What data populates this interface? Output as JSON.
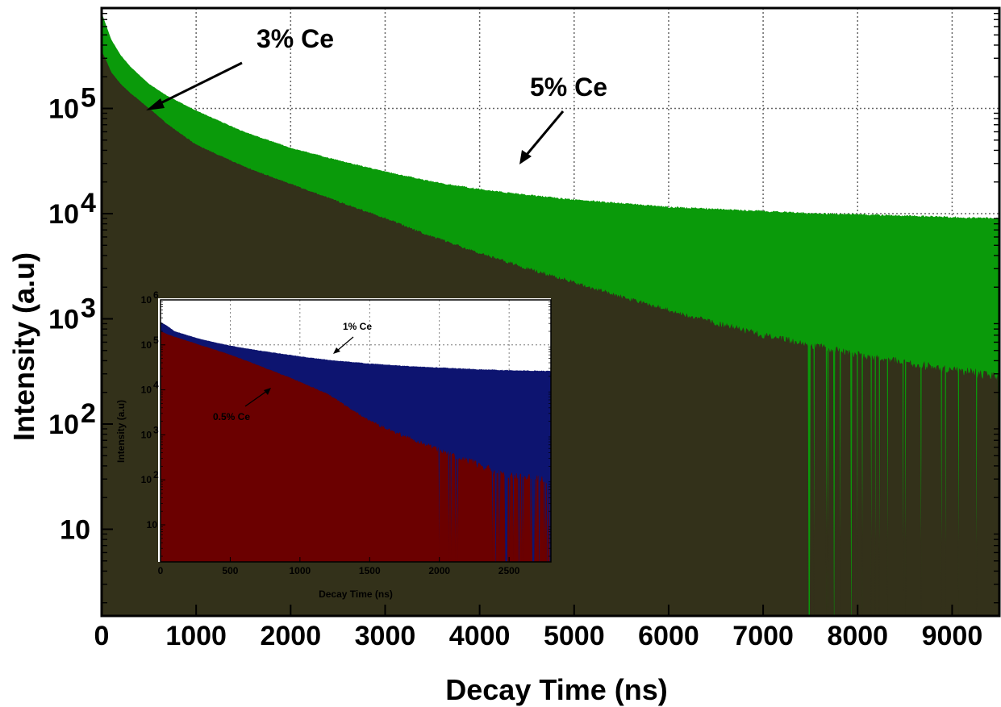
{
  "chart_data": [
    {
      "type": "area",
      "xlabel": "Decay Time (ns)",
      "ylabel": "Intensity (a.u)",
      "xlim": [
        0,
        9500
      ],
      "ylim": [
        1.5,
        900000
      ],
      "yscale": "log",
      "grid": true,
      "xticks": [
        "0",
        "1000",
        "2000",
        "3000",
        "4000",
        "5000",
        "6000",
        "7000",
        "8000",
        "9000"
      ],
      "yticks": [
        {
          "value": 10,
          "label": "10",
          "sup": ""
        },
        {
          "value": 100,
          "label": "10",
          "sup": "2"
        },
        {
          "value": 1000,
          "label": "10",
          "sup": "3"
        },
        {
          "value": 10000,
          "label": "10",
          "sup": "4"
        },
        {
          "value": 100000,
          "label": "10",
          "sup": "5"
        }
      ],
      "series": [
        {
          "name": "5% Ce",
          "color": "#0a9a0a",
          "x": [
            0,
            50,
            100,
            200,
            300,
            500,
            700,
            1000,
            1500,
            2000,
            2500,
            3000,
            3500,
            4000,
            4500,
            5000,
            5500,
            6000,
            6500,
            7000,
            7500,
            8000,
            8500,
            9000,
            9500
          ],
          "y": [
            800000,
            600000,
            450000,
            320000,
            250000,
            170000,
            130000,
            95000,
            60000,
            42000,
            32000,
            25000,
            20000,
            17000,
            15000,
            13500,
            12500,
            11500,
            11000,
            10500,
            10000,
            9800,
            9500,
            9200,
            9000
          ]
        },
        {
          "name": "3% Ce",
          "color": "#33311a",
          "x": [
            0,
            50,
            100,
            200,
            300,
            500,
            700,
            1000,
            1500,
            2000,
            2500,
            3000,
            3500,
            4000,
            4500,
            5000,
            5500,
            6000,
            6500,
            7000,
            7500,
            8000,
            8500,
            9000,
            9500
          ],
          "y": [
            350000,
            280000,
            220000,
            170000,
            140000,
            100000,
            70000,
            45000,
            28000,
            19000,
            13000,
            9000,
            6000,
            4200,
            3000,
            2200,
            1600,
            1200,
            900,
            700,
            560,
            450,
            380,
            320,
            280
          ]
        }
      ],
      "annotations": [
        "3% Ce",
        "5% Ce"
      ]
    },
    {
      "type": "area",
      "xlabel": "Decay Time (ns)",
      "ylabel": "Intensity (a.u)",
      "xlim": [
        0,
        2800
      ],
      "ylim": [
        1.5,
        1000000
      ],
      "yscale": "log",
      "grid": true,
      "xticks": [
        "0",
        "500",
        "1000",
        "1500",
        "2000",
        "2500"
      ],
      "yticks": [
        {
          "value": 10,
          "label": "10",
          "sup": ""
        },
        {
          "value": 100,
          "label": "10",
          "sup": "2"
        },
        {
          "value": 1000,
          "label": "10",
          "sup": "3"
        },
        {
          "value": 10000,
          "label": "10",
          "sup": "4"
        },
        {
          "value": 100000,
          "label": "10",
          "sup": "5"
        },
        {
          "value": 1000000,
          "label": "10",
          "sup": "6"
        }
      ],
      "series": [
        {
          "name": "1% Ce",
          "color": "#0d1470",
          "x": [
            0,
            50,
            100,
            200,
            300,
            500,
            700,
            1000,
            1200,
            1500,
            1800,
            2000,
            2200,
            2500,
            2800
          ],
          "y": [
            320000,
            260000,
            200000,
            160000,
            130000,
            95000,
            75000,
            55000,
            46000,
            38000,
            33000,
            31000,
            29000,
            27000,
            26000
          ]
        },
        {
          "name": "0.5% Ce",
          "color": "#6b0000",
          "x": [
            0,
            50,
            100,
            200,
            300,
            500,
            700,
            1000,
            1200,
            1300,
            1350,
            1450,
            1500,
            1800,
            2000,
            2200,
            2400,
            2500,
            2800
          ],
          "y": [
            200000,
            170000,
            150000,
            120000,
            95000,
            60000,
            35000,
            15000,
            8000,
            5000,
            4000,
            2500,
            2000,
            800,
            450,
            260,
            150,
            120,
            80
          ]
        }
      ],
      "annotations": [
        "1% Ce",
        "0.5% Ce"
      ]
    }
  ]
}
